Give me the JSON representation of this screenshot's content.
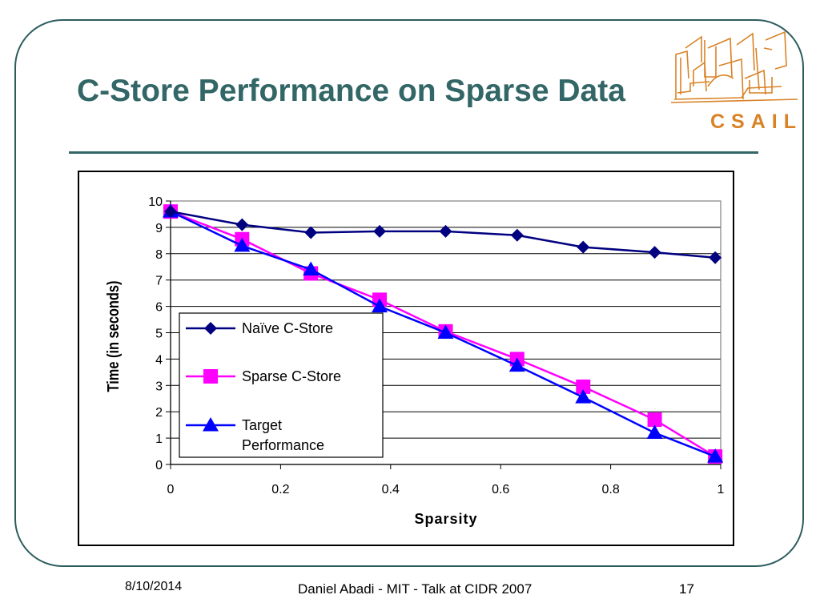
{
  "slide": {
    "title": "C-Store Performance on Sparse Data",
    "logo_text": "CSAIL",
    "footer_date": "8/10/2014",
    "footer_center": "Daniel Abadi - MIT - Talk at CIDR 2007",
    "page_number": "17"
  },
  "colors": {
    "title": "#336666",
    "frame": "#2d5c5e",
    "logo": "#d98226",
    "series_naive": "#000080",
    "series_sparse": "#ff00ff",
    "series_target": "#0000ff"
  },
  "chart_data": {
    "type": "line",
    "title": "",
    "xlabel": "Sparsity",
    "ylabel": "Time (in seconds)",
    "xlim": [
      0,
      1
    ],
    "ylim": [
      0,
      10
    ],
    "xticks": [
      "0",
      "0.2",
      "0.4",
      "0.6",
      "0.8",
      "1"
    ],
    "yticks": [
      "0",
      "1",
      "2",
      "3",
      "4",
      "5",
      "6",
      "7",
      "8",
      "9",
      "10"
    ],
    "grid": true,
    "legend_position": "left",
    "series": [
      {
        "name": "Naïve C-Store",
        "marker": "diamond",
        "color": "#000080",
        "x": [
          0,
          0.13,
          0.255,
          0.38,
          0.5,
          0.63,
          0.75,
          0.88,
          0.99
        ],
        "y": [
          9.6,
          9.1,
          8.8,
          8.85,
          8.85,
          8.7,
          8.25,
          8.05,
          7.85
        ]
      },
      {
        "name": "Sparse C-Store",
        "marker": "square",
        "color": "#ff00ff",
        "x": [
          0,
          0.13,
          0.255,
          0.38,
          0.5,
          0.63,
          0.75,
          0.88,
          0.99
        ],
        "y": [
          9.6,
          8.55,
          7.25,
          6.25,
          5.05,
          4.0,
          2.95,
          1.7,
          0.3
        ]
      },
      {
        "name": "Target Performance",
        "legend_lines": [
          "Target",
          "Performance"
        ],
        "marker": "triangle",
        "color": "#0000ff",
        "x": [
          0,
          0.13,
          0.255,
          0.38,
          0.5,
          0.63,
          0.75,
          0.88,
          0.99
        ],
        "y": [
          9.6,
          8.3,
          7.4,
          6.0,
          5.0,
          3.75,
          2.55,
          1.2,
          0.3
        ]
      }
    ]
  }
}
